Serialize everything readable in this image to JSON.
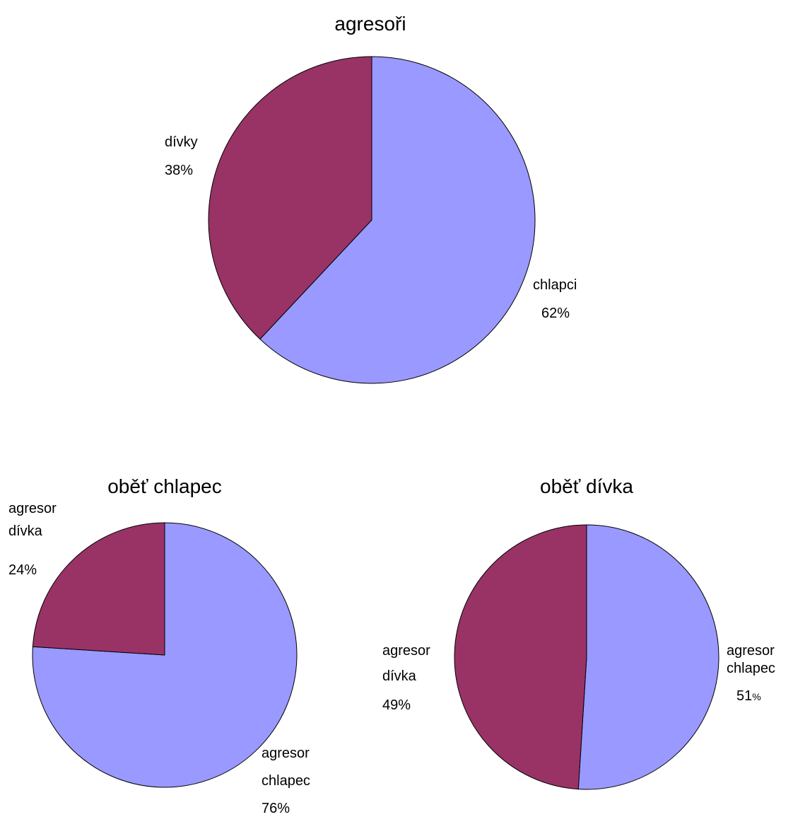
{
  "chart_data": [
    {
      "type": "pie",
      "title": "agresoři",
      "slices": [
        {
          "label": "chlapci",
          "value": 62,
          "value_label": "62%",
          "color": "#9999ff"
        },
        {
          "label": "dívky",
          "value": 38,
          "value_label": "38%",
          "color": "#993366"
        }
      ]
    },
    {
      "type": "pie",
      "title": "oběť chlapec",
      "slices": [
        {
          "label": "agresor chlapec",
          "label_lines": [
            "agresor",
            "chlapec"
          ],
          "value": 76,
          "value_label": "76%",
          "color": "#9999ff"
        },
        {
          "label": "agresor dívka",
          "label_lines": [
            "agresor",
            "dívka"
          ],
          "value": 24,
          "value_label": "24%",
          "color": "#993366"
        }
      ]
    },
    {
      "type": "pie",
      "title": "oběť dívka",
      "slices": [
        {
          "label": "agresor chlapec",
          "label_lines": [
            "agresor",
            "chlapec"
          ],
          "value": 51,
          "value_label": "51",
          "value_suffix": "%",
          "color": "#9999ff"
        },
        {
          "label": "agresor dívka",
          "label_lines": [
            "agresor",
            "dívka"
          ],
          "value": 49,
          "value_label": "49%",
          "color": "#993366"
        }
      ]
    }
  ]
}
